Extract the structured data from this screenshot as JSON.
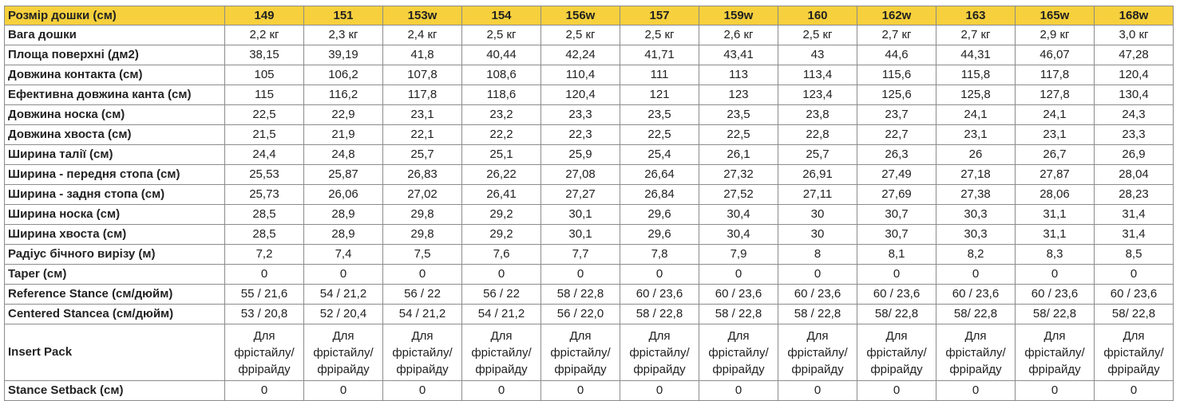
{
  "header": {
    "corner": "Розмір дошки (см)",
    "sizes": [
      "149",
      "151",
      "153w",
      "154",
      "156w",
      "157",
      "159w",
      "160",
      "162w",
      "163",
      "165w",
      "168w"
    ]
  },
  "rows": [
    {
      "label": "Вага дошки",
      "values": [
        "2,2 кг",
        "2,3 кг",
        "2,4 кг",
        "2,5 кг",
        "2,5 кг",
        "2,5 кг",
        "2,6 кг",
        "2,5 кг",
        "2,7 кг",
        "2,7 кг",
        "2,9 кг",
        "3,0 кг"
      ]
    },
    {
      "label": "Площа поверхні (дм2)",
      "values": [
        "38,15",
        "39,19",
        "41,8",
        "40,44",
        "42,24",
        "41,71",
        "43,41",
        "43",
        "44,6",
        "44,31",
        "46,07",
        "47,28"
      ]
    },
    {
      "label": "Довжина контакта (см)",
      "values": [
        "105",
        "106,2",
        "107,8",
        "108,6",
        "110,4",
        "111",
        "113",
        "113,4",
        "115,6",
        "115,8",
        "117,8",
        "120,4"
      ]
    },
    {
      "label": "Ефективна довжина канта (см)",
      "values": [
        "115",
        "116,2",
        "117,8",
        "118,6",
        "120,4",
        "121",
        "123",
        "123,4",
        "125,6",
        "125,8",
        "127,8",
        "130,4"
      ]
    },
    {
      "label": "Довжина носка (см)",
      "values": [
        "22,5",
        "22,9",
        "23,1",
        "23,2",
        "23,3",
        "23,5",
        "23,5",
        "23,8",
        "23,7",
        "24,1",
        "24,1",
        "24,3"
      ]
    },
    {
      "label": "Довжина хвоста (см)",
      "values": [
        "21,5",
        "21,9",
        "22,1",
        "22,2",
        "22,3",
        "22,5",
        "22,5",
        "22,8",
        "22,7",
        "23,1",
        "23,1",
        "23,3"
      ]
    },
    {
      "label": "Ширина талії (см)",
      "values": [
        "24,4",
        "24,8",
        "25,7",
        "25,1",
        "25,9",
        "25,4",
        "26,1",
        "25,7",
        "26,3",
        "26",
        "26,7",
        "26,9"
      ]
    },
    {
      "label": "Ширина - передня стопа (см)",
      "values": [
        "25,53",
        "25,87",
        "26,83",
        "26,22",
        "27,08",
        "26,64",
        "27,32",
        "26,91",
        "27,49",
        "27,18",
        "27,87",
        "28,04"
      ]
    },
    {
      "label": "Ширина - задня стопа (см)",
      "values": [
        "25,73",
        "26,06",
        "27,02",
        "26,41",
        "27,27",
        "26,84",
        "27,52",
        "27,11",
        "27,69",
        "27,38",
        "28,06",
        "28,23"
      ]
    },
    {
      "label": "Ширина носка (см)",
      "values": [
        "28,5",
        "28,9",
        "29,8",
        "29,2",
        "30,1",
        "29,6",
        "30,4",
        "30",
        "30,7",
        "30,3",
        "31,1",
        "31,4"
      ]
    },
    {
      "label": "Ширина хвоста (см)",
      "values": [
        "28,5",
        "28,9",
        "29,8",
        "29,2",
        "30,1",
        "29,6",
        "30,4",
        "30",
        "30,7",
        "30,3",
        "31,1",
        "31,4"
      ]
    },
    {
      "label": "Радіус бічного вирізу (м)",
      "values": [
        "7,2",
        "7,4",
        "7,5",
        "7,6",
        "7,7",
        "7,8",
        "7,9",
        "8",
        "8,1",
        "8,2",
        "8,3",
        "8,5"
      ]
    },
    {
      "label": "Taper (см)",
      "values": [
        "0",
        "0",
        "0",
        "0",
        "0",
        "0",
        "0",
        "0",
        "0",
        "0",
        "0",
        "0"
      ]
    },
    {
      "label": "Reference Stance (см/дюйм)",
      "values": [
        "55 / 21,6",
        "54 / 21,2",
        "56 / 22",
        "56 / 22",
        "58 / 22,8",
        "60 / 23,6",
        "60 / 23,6",
        "60 / 23,6",
        "60 / 23,6",
        "60 / 23,6",
        "60 / 23,6",
        "60 / 23,6"
      ]
    },
    {
      "label": "Centered Stancea (см/дюйм)",
      "values": [
        "53 / 20,8",
        "52 / 20,4",
        "54 / 21,2",
        "54 / 21,2",
        "56 / 22,0",
        "58 / 22,8",
        "58 / 22,8",
        "58 / 22,8",
        "58/ 22,8",
        "58/ 22,8",
        "58/ 22,8",
        "58/ 22,8"
      ]
    },
    {
      "label": "Insert Pack",
      "tall": true,
      "values": [
        "Для фрістайлу/ фрірайду",
        "Для фрістайлу/ фрірайду",
        "Для фрістайлу/ фрірайду",
        "Для фрістайлу/ фрірайду",
        "Для фрістайлу/ фрірайду",
        "Для фрістайлу/ фрірайду",
        "Для фрістайлу/ фрірайду",
        "Для фрістайлу/ фрірайду",
        "Для фрістайлу/ фрірайду",
        "Для фрістайлу/ фрірайду",
        "Для фрістайлу/ фрірайду",
        "Для фрістайлу/ фрірайду"
      ]
    },
    {
      "label": "Stance Setback (см)",
      "values": [
        "0",
        "0",
        "0",
        "0",
        "0",
        "0",
        "0",
        "0",
        "0",
        "0",
        "0",
        "0"
      ]
    }
  ]
}
